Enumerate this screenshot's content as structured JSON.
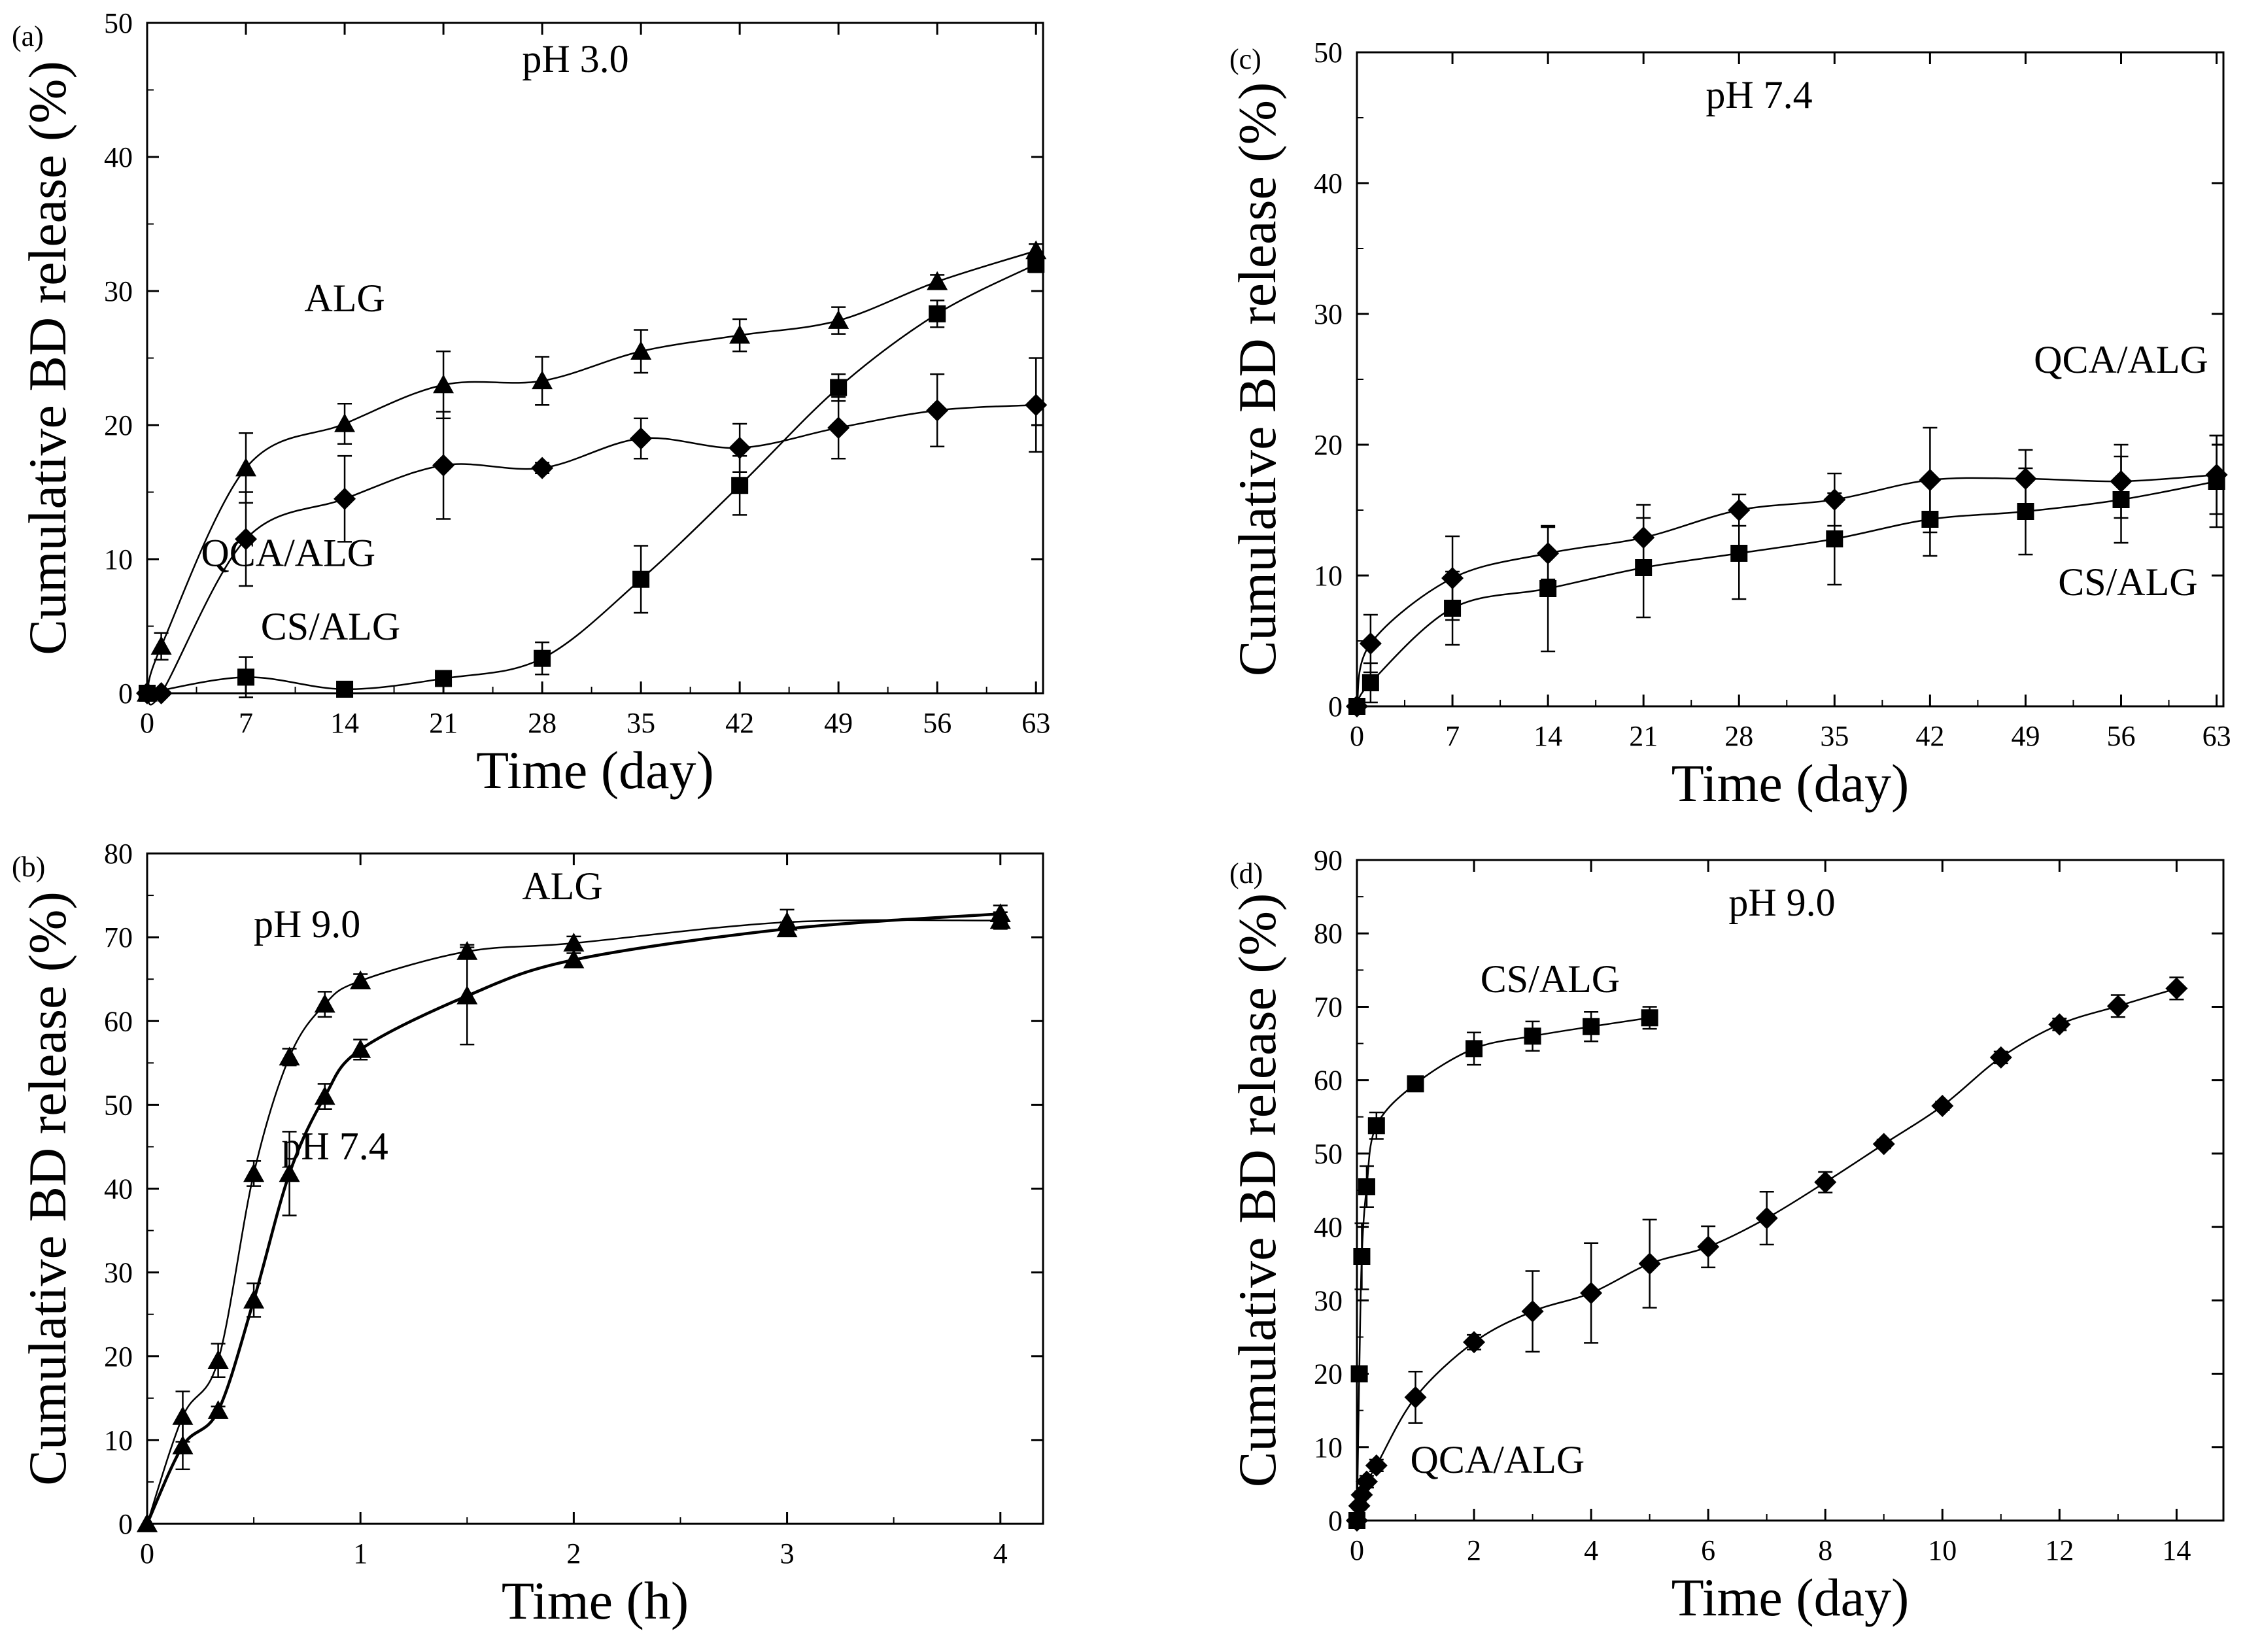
{
  "chart_data": [
    {
      "panel": "(a)",
      "type": "line",
      "title": "pH 3.0",
      "xlabel": "Time (day)",
      "ylabel": "Cumulative BD release (%)",
      "xlim": [
        0,
        63.5
      ],
      "ylim": [
        0,
        50
      ],
      "xticks": [
        0,
        7,
        14,
        21,
        28,
        35,
        42,
        49,
        56,
        63
      ],
      "yticks": [
        0,
        10,
        20,
        30,
        40,
        50
      ],
      "series": [
        {
          "name": "ALG",
          "marker": "triangle",
          "label_pos": [
            14,
            28.5
          ],
          "x": [
            0,
            1,
            7,
            14,
            21,
            28,
            35,
            42,
            49,
            56,
            63
          ],
          "y": [
            0,
            3.5,
            16.8,
            20.1,
            23.0,
            23.3,
            25.5,
            26.7,
            27.8,
            30.7,
            33.0
          ],
          "err": [
            0,
            1.0,
            2.6,
            1.5,
            2.5,
            1.8,
            1.6,
            1.2,
            1.0,
            0.5,
            0.5
          ]
        },
        {
          "name": "QCA/ALG",
          "marker": "diamond",
          "label_pos": [
            10,
            9.5
          ],
          "x": [
            0,
            1,
            7,
            14,
            21,
            28,
            35,
            42,
            49,
            56,
            63
          ],
          "y": [
            0,
            0,
            11.5,
            14.5,
            17.0,
            16.8,
            19.0,
            18.3,
            19.8,
            21.1,
            21.5
          ],
          "err": [
            0,
            0,
            3.5,
            3.2,
            4.0,
            0.4,
            1.5,
            1.8,
            2.3,
            2.7,
            3.5
          ]
        },
        {
          "name": "CS/ALG",
          "marker": "square",
          "label_pos": [
            13,
            4.0
          ],
          "x": [
            0,
            7,
            14,
            21,
            28,
            35,
            42,
            49,
            56,
            63
          ],
          "y": [
            0,
            1.2,
            0.3,
            1.1,
            2.6,
            8.5,
            15.5,
            22.8,
            28.3,
            32.0
          ],
          "err": [
            0,
            1.5,
            0,
            0.3,
            1.2,
            2.5,
            2.2,
            1.0,
            1.0,
            0.6
          ]
        }
      ]
    },
    {
      "panel": "(b)",
      "type": "line",
      "title": "ALG",
      "xlabel": "Time (h)",
      "ylabel": "Cumulative BD release (%)",
      "xlim": [
        0,
        4.2
      ],
      "ylim": [
        0,
        80
      ],
      "xticks": [
        0,
        1,
        2,
        3,
        4
      ],
      "yticks": [
        0,
        10,
        20,
        30,
        40,
        50,
        60,
        70,
        80
      ],
      "series": [
        {
          "name": "pH 9.0",
          "marker": "triangle",
          "label_pos": [
            0.75,
            70
          ],
          "x": [
            0,
            0.167,
            0.333,
            0.5,
            0.667,
            0.833,
            1.0,
            1.5,
            2.0,
            3.0,
            4.0
          ],
          "y": [
            0,
            12.8,
            19.5,
            41.8,
            55.7,
            62.0,
            64.8,
            68.3,
            69.3,
            71.8,
            72.0
          ],
          "err": [
            0,
            3.0,
            2.0,
            1.5,
            1.0,
            1.5,
            0.8,
            0.8,
            0.8,
            1.5,
            1.0
          ]
        },
        {
          "name": "pH 7.4",
          "marker": "triangle",
          "label_pos": [
            0.88,
            43.5
          ],
          "x": [
            0,
            0.167,
            0.333,
            0.5,
            0.667,
            0.833,
            1.0,
            1.5,
            2.0,
            3.0,
            4.0
          ],
          "y": [
            0,
            9.3,
            13.5,
            26.7,
            41.8,
            51.0,
            56.6,
            63.0,
            67.3,
            71.0,
            72.8
          ],
          "err": [
            0,
            2.8,
            0.5,
            2.0,
            5.0,
            1.5,
            1.2,
            5.8,
            0.8,
            0.8,
            1.0
          ]
        }
      ]
    },
    {
      "panel": "(c)",
      "type": "line",
      "title": "pH 7.4",
      "xlabel": "Time (day)",
      "ylabel": "Cumulative BD release (%)",
      "xlim": [
        0,
        63.5
      ],
      "ylim": [
        0,
        50
      ],
      "xticks": [
        0,
        7,
        14,
        21,
        28,
        35,
        42,
        49,
        56,
        63
      ],
      "yticks": [
        0,
        10,
        20,
        30,
        40,
        50
      ],
      "series": [
        {
          "name": "QCA/ALG",
          "marker": "diamond",
          "label_pos": [
            56,
            25.5
          ],
          "x": [
            0,
            1,
            7,
            14,
            21,
            28,
            35,
            42,
            49,
            56,
            63
          ],
          "y": [
            0,
            4.8,
            9.8,
            11.7,
            12.9,
            15.0,
            15.8,
            17.3,
            17.4,
            17.2,
            17.7
          ],
          "err": [
            0,
            2.2,
            3.2,
            2.0,
            2.5,
            1.2,
            2.0,
            4.0,
            2.2,
            2.8,
            3.0
          ]
        },
        {
          "name": "CS/ALG",
          "marker": "square",
          "label_pos": [
            56.5,
            8.5
          ],
          "x": [
            0,
            1,
            7,
            14,
            21,
            28,
            35,
            42,
            49,
            56,
            63
          ],
          "y": [
            0,
            1.8,
            7.5,
            9.0,
            10.6,
            11.7,
            12.8,
            14.3,
            14.9,
            15.8,
            17.2
          ],
          "err": [
            0,
            1.5,
            2.8,
            4.8,
            3.8,
            3.5,
            3.5,
            2.8,
            3.3,
            3.3,
            3.5
          ]
        }
      ]
    },
    {
      "panel": "(d)",
      "type": "line",
      "title": "pH 9.0",
      "xlabel": "Time (day)",
      "ylabel": "Cumulative BD release (%)",
      "xlim": [
        0,
        14.8
      ],
      "ylim": [
        0,
        90
      ],
      "xticks": [
        0,
        2,
        4,
        6,
        8,
        10,
        12,
        14
      ],
      "yticks": [
        0,
        10,
        20,
        30,
        40,
        50,
        60,
        70,
        80,
        90
      ],
      "series": [
        {
          "name": "CS/ALG",
          "marker": "square",
          "label_pos": [
            3.3,
            72
          ],
          "x": [
            0,
            0.04,
            0.083,
            0.167,
            0.333,
            1,
            2,
            3,
            4,
            5
          ],
          "y": [
            0,
            20.0,
            36.0,
            45.5,
            53.8,
            59.5,
            64.3,
            66.0,
            67.3,
            68.5
          ],
          "err": [
            0,
            1.0,
            4.5,
            2.8,
            1.8,
            0.6,
            2.2,
            2.0,
            2.0,
            1.5
          ]
        },
        {
          "name": "QCA/ALG",
          "marker": "diamond",
          "label_pos": [
            2.4,
            6.5
          ],
          "x": [
            0,
            0.04,
            0.083,
            0.167,
            0.333,
            1,
            2,
            3,
            4,
            5,
            6,
            7,
            8,
            9,
            10,
            11,
            12,
            13,
            14
          ],
          "y": [
            0,
            2.0,
            3.5,
            5.3,
            7.5,
            16.8,
            24.3,
            28.5,
            31.0,
            35.0,
            37.3,
            41.2,
            46.1,
            51.3,
            56.5,
            63.1,
            67.6,
            70.1,
            72.5
          ],
          "err": [
            0,
            0.5,
            0.5,
            0.8,
            0.8,
            3.5,
            1.0,
            5.5,
            6.8,
            6.0,
            2.8,
            3.6,
            1.4,
            0.6,
            0.6,
            0.8,
            0.8,
            1.5,
            1.5
          ]
        }
      ]
    }
  ]
}
